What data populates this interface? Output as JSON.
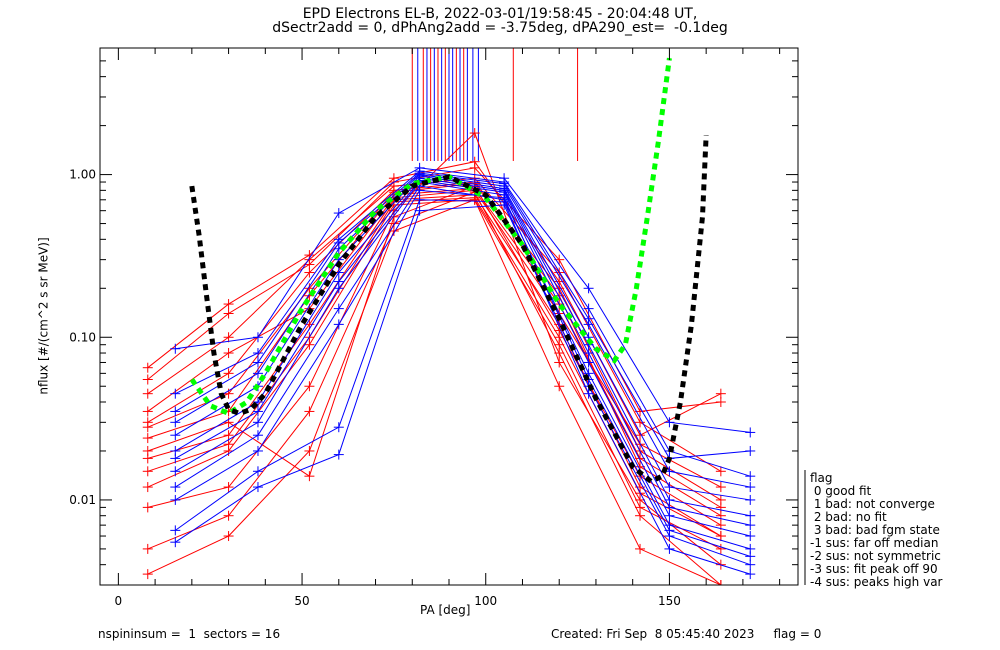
{
  "header": {
    "title_line1": "EPD Electrons EL-B, 2022-03-01/19:58:45 - 20:04:48 UT,",
    "title_line2": "dSectr2add = 0, dPhAng2add = -3.75deg, dPA290_est=  -0.1deg"
  },
  "footer": {
    "left": "nspininsum =  1  sectors = 16",
    "right": "Created: Fri Sep  8 05:45:40 2023     flag = 0"
  },
  "legend": {
    "title": "flag",
    "items": [
      " 0 good fit",
      " 1 bad: not converge",
      " 2 bad: no fit",
      " 3 bad: bad fgm state",
      "-1 sus: far off median",
      "-2 sus: not symmetric",
      "-3 sus: fit peak off 90",
      "-4 sus: peaks high var"
    ]
  },
  "colors": {
    "series_a": "#ff0000",
    "series_b": "#0000ff",
    "fit_green": "#00ff00",
    "fit_black": "#000000"
  },
  "chart_data": {
    "type": "line",
    "title": "EPD Electrons EL-B, 2022-03-01/19:58:45 - 20:04:48 UT, dSectr2add = 0, dPhAng2add = -3.75deg, dPA290_est=  -0.1deg",
    "xlabel": "PA [deg]",
    "ylabel": "nflux [#/(cm^2 s sr MeV)]",
    "xlim": [
      -5,
      185
    ],
    "ylim": [
      0.003,
      6.0
    ],
    "yscale": "log",
    "xticks": [
      0,
      50,
      100,
      150
    ],
    "xtick_labels": [
      "0",
      "50",
      "100",
      "150"
    ],
    "yticks": [
      0.01,
      0.1,
      1.0
    ],
    "ytick_labels": [
      "0.01",
      "0.10",
      "1.00"
    ],
    "grid": false,
    "legend_position": "outside-right-bottom",
    "pa_bins_red": [
      8,
      30,
      52,
      75,
      97,
      120,
      142,
      164
    ],
    "pa_bins_blue": [
      15.5,
      38,
      60,
      82,
      105,
      128,
      150,
      172
    ],
    "series": [
      {
        "name": "red-sector-spectra",
        "color": "#ff0000",
        "pa": [
          8,
          30,
          52,
          75,
          97,
          120,
          142,
          164
        ],
        "traces": [
          [
            0.024,
            0.035,
            0.18,
            0.75,
            0.82,
            0.16,
            0.018,
            0.009
          ],
          [
            0.03,
            0.06,
            0.25,
            0.8,
            0.9,
            0.2,
            0.02,
            0.01
          ],
          [
            0.018,
            0.025,
            0.12,
            0.7,
            0.75,
            0.12,
            0.012,
            0.006
          ],
          [
            0.045,
            0.1,
            0.3,
            0.85,
            0.95,
            0.25,
            0.03,
            0.015
          ],
          [
            0.012,
            0.02,
            0.09,
            0.65,
            0.7,
            0.09,
            0.009,
            0.005
          ],
          [
            0.055,
            0.14,
            0.28,
            0.9,
            1.1,
            0.3,
            0.035,
            0.04
          ],
          [
            0.009,
            0.012,
            0.05,
            0.6,
            1.8,
            0.07,
            0.01,
            0.004
          ],
          [
            0.028,
            0.045,
            0.2,
            0.78,
            0.88,
            0.18,
            0.016,
            0.008
          ],
          [
            0.035,
            0.08,
            0.15,
            0.72,
            0.8,
            0.14,
            0.022,
            0.012
          ],
          [
            0.02,
            0.03,
            0.014,
            0.55,
            0.85,
            0.11,
            0.014,
            0.007
          ],
          [
            0.005,
            0.008,
            0.035,
            0.5,
            0.78,
            0.08,
            0.008,
            0.003
          ],
          [
            0.065,
            0.16,
            0.32,
            0.95,
            1.2,
            0.22,
            0.025,
            0.045
          ],
          [
            0.015,
            0.022,
            0.1,
            0.68,
            0.72,
            0.1,
            0.011,
            0.006
          ],
          [
            0.0035,
            0.006,
            0.02,
            0.45,
            0.7,
            0.05,
            0.005,
            0.003
          ]
        ]
      },
      {
        "name": "blue-sector-spectra",
        "color": "#0000ff",
        "pa": [
          15.5,
          38,
          60,
          82,
          105,
          128,
          150,
          172
        ],
        "traces": [
          [
            0.03,
            0.06,
            0.35,
            1.0,
            0.85,
            0.12,
            0.015,
            0.012
          ],
          [
            0.02,
            0.04,
            0.25,
            0.95,
            0.8,
            0.09,
            0.01,
            0.008
          ],
          [
            0.015,
            0.03,
            0.2,
            0.9,
            0.75,
            0.07,
            0.008,
            0.006
          ],
          [
            0.045,
            0.08,
            0.4,
            1.05,
            0.9,
            0.15,
            0.02,
            0.014
          ],
          [
            0.012,
            0.025,
            0.15,
            0.85,
            0.7,
            0.06,
            0.007,
            0.005
          ],
          [
            0.085,
            0.1,
            0.58,
            1.1,
            0.95,
            0.2,
            0.03,
            0.026
          ],
          [
            0.0055,
            0.012,
            0.019,
            0.6,
            0.65,
            0.05,
            0.006,
            0.004
          ],
          [
            0.025,
            0.05,
            0.3,
            0.98,
            0.82,
            0.1,
            0.012,
            0.01
          ],
          [
            0.035,
            0.07,
            0.38,
            1.02,
            0.88,
            0.13,
            0.018,
            0.02
          ],
          [
            0.018,
            0.035,
            0.22,
            0.92,
            0.78,
            0.08,
            0.009,
            0.007
          ],
          [
            0.01,
            0.02,
            0.12,
            0.8,
            0.72,
            0.055,
            0.0065,
            0.0045
          ],
          [
            0.0065,
            0.015,
            0.028,
            0.7,
            0.68,
            0.045,
            0.005,
            0.0035
          ]
        ]
      },
      {
        "name": "fit-green",
        "color": "#00ff00",
        "style": "dashed-thick",
        "pa": [
          20,
          25,
          30,
          35,
          40,
          50,
          60,
          70,
          80,
          90,
          100,
          110,
          120,
          130,
          135,
          138,
          141,
          144,
          147,
          150
        ],
        "value": [
          0.055,
          0.038,
          0.034,
          0.04,
          0.06,
          0.15,
          0.33,
          0.6,
          0.88,
          0.97,
          0.72,
          0.37,
          0.16,
          0.085,
          0.072,
          0.09,
          0.2,
          0.55,
          1.6,
          5.2
        ]
      },
      {
        "name": "fit-black",
        "color": "#000000",
        "style": "dashed-thick",
        "pa": [
          20,
          22,
          24,
          26,
          28,
          30,
          33,
          36,
          40,
          50,
          60,
          70,
          80,
          90,
          100,
          110,
          120,
          130,
          140,
          145,
          148,
          150,
          153,
          156,
          159,
          160
        ],
        "value": [
          0.85,
          0.42,
          0.18,
          0.08,
          0.045,
          0.036,
          0.034,
          0.036,
          0.045,
          0.12,
          0.28,
          0.55,
          0.85,
          0.97,
          0.75,
          0.37,
          0.13,
          0.042,
          0.016,
          0.013,
          0.014,
          0.018,
          0.04,
          0.12,
          0.55,
          1.75
        ]
      }
    ],
    "top_marker_lines": {
      "description": "vertical lines from top axis for clipped values",
      "red_pa": [
        80,
        83,
        85,
        87,
        89,
        92,
        94,
        107.5,
        125
      ],
      "blue_pa": [
        81.5,
        84,
        86,
        88,
        90,
        91,
        93,
        95,
        96.5,
        98
      ]
    }
  }
}
